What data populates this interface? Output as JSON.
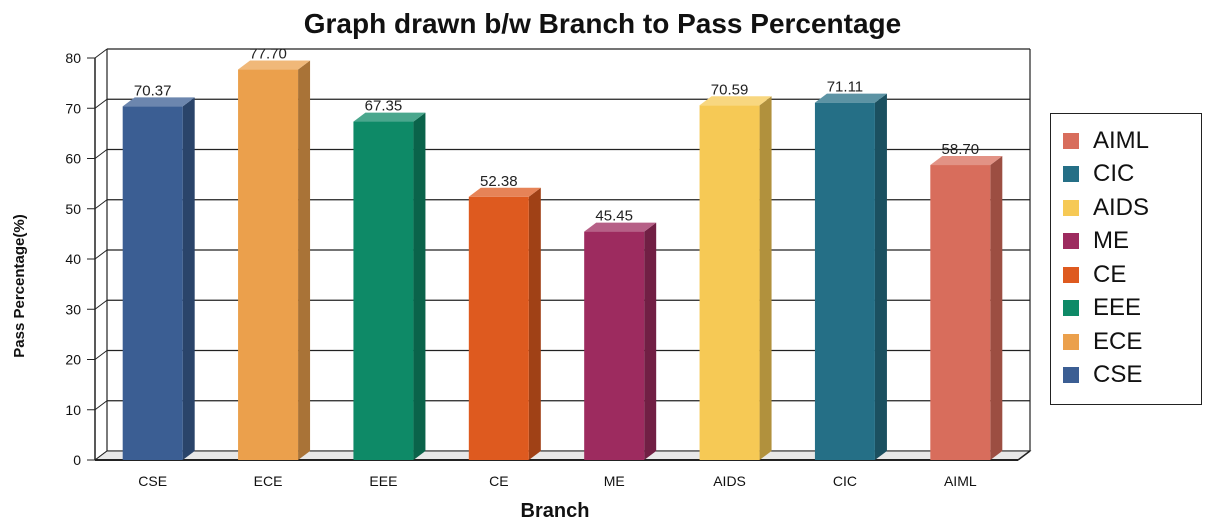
{
  "chart_data": {
    "type": "bar",
    "title": "Graph drawn b/w Branch to Pass Percentage",
    "xlabel": "Branch",
    "ylabel": "Pass Percentage(%)",
    "ylim": [
      0,
      80
    ],
    "yticks": [
      "0",
      "10",
      "20",
      "30",
      "40",
      "50",
      "60",
      "70",
      "80"
    ],
    "grid": true,
    "legend_position": "right",
    "categories": [
      "CSE",
      "ECE",
      "EEE",
      "CE",
      "ME",
      "AIDS",
      "CIC",
      "AIML"
    ],
    "values": [
      70.37,
      77.7,
      67.35,
      52.38,
      45.45,
      70.59,
      71.11,
      58.7
    ],
    "value_labels": [
      "70.37",
      "77.70",
      "67.35",
      "52.38",
      "45.45",
      "70.59",
      "71.11",
      "58.70"
    ],
    "colors": [
      "#3b5e93",
      "#eba04c",
      "#0e8a67",
      "#de5a1f",
      "#9d2b5f",
      "#f6c955",
      "#256f86",
      "#d86d5c"
    ],
    "legend": [
      "AIML",
      "CIC",
      "AIDS",
      "ME",
      "CE",
      "EEE",
      "ECE",
      "CSE"
    ]
  }
}
